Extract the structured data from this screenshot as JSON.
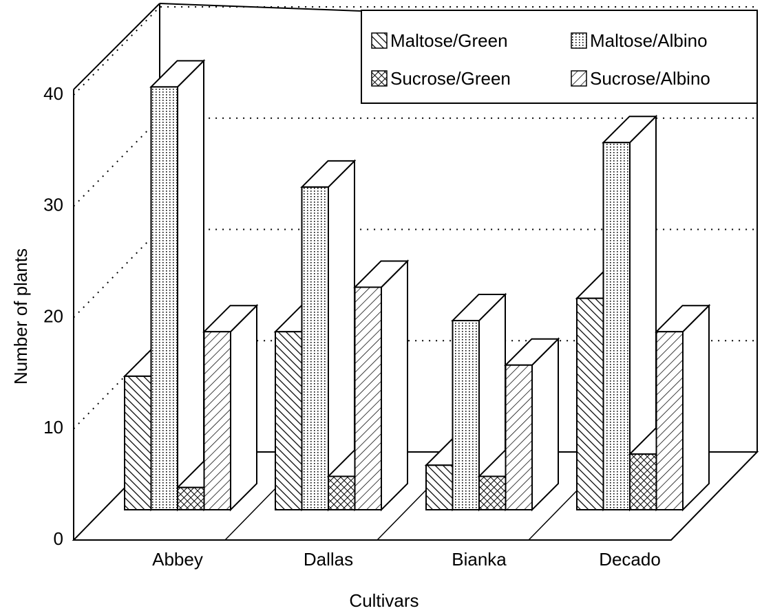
{
  "chart_data": {
    "type": "bar3d",
    "x_label": "Cultivars",
    "y_label": "Number of plants",
    "categories": [
      "Abbey",
      "Dallas",
      "Bianka",
      "Decado"
    ],
    "series": [
      {
        "name": "Maltose/Green",
        "color": "#000000",
        "pattern": "back-diagonal",
        "values": [
          12,
          16,
          4,
          19
        ]
      },
      {
        "name": "Maltose/Albino",
        "color": "#000000",
        "pattern": "dots",
        "values": [
          38,
          29,
          17,
          33
        ]
      },
      {
        "name": "Sucrose/Green",
        "color": "#000000",
        "pattern": "crosshatch",
        "values": [
          2,
          3,
          3,
          5
        ]
      },
      {
        "name": "Sucrose/Albino",
        "color": "#000000",
        "pattern": "diagonal",
        "values": [
          16,
          20,
          13,
          16
        ]
      }
    ],
    "ylim": [
      0,
      40
    ],
    "yticks": [
      0,
      10,
      20,
      30,
      40
    ],
    "grid": true,
    "legend": "top-right"
  }
}
